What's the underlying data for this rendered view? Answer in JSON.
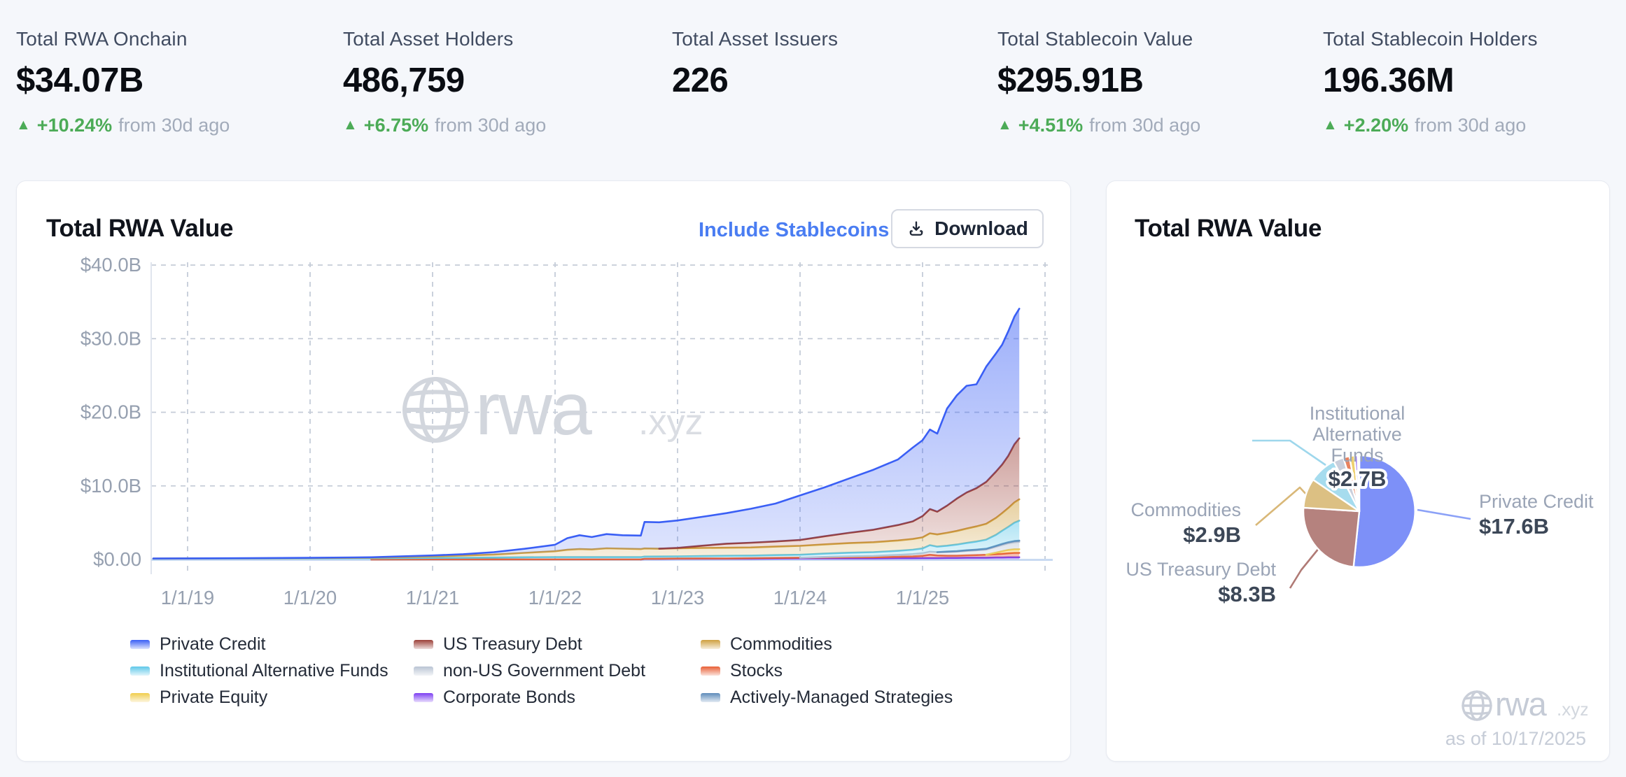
{
  "stats": [
    {
      "label": "Total RWA Onchain",
      "value": "$34.07B",
      "change": "+10.24%",
      "suffix": "from 30d ago"
    },
    {
      "label": "Total Asset Holders",
      "value": "486,759",
      "change": "+6.75%",
      "suffix": "from 30d ago"
    },
    {
      "label": "Total Asset Issuers",
      "value": "226",
      "change": null,
      "suffix": null
    },
    {
      "label": "Total Stablecoin Value",
      "value": "$295.91B",
      "change": "+4.51%",
      "suffix": "from 30d ago"
    },
    {
      "label": "Total Stablecoin Holders",
      "value": "196.36M",
      "change": "+2.20%",
      "suffix": "from 30d ago"
    }
  ],
  "left_card": {
    "title": "Total RWA Value",
    "include_stablecoins_label": "Include Stablecoins",
    "download_label": "Download"
  },
  "right_card": {
    "title": "Total RWA Value",
    "as_of": "as of 10/17/2025",
    "logo": {
      "text": "rwa",
      "suffix": ".xyz"
    }
  },
  "chart_data": [
    {
      "type": "area",
      "stacked": true,
      "title": "Total RWA Value",
      "xlabel": "",
      "ylabel": "",
      "ylim": [
        0,
        40
      ],
      "yticks": [
        0,
        10,
        20,
        30,
        40
      ],
      "ytick_labels": [
        "$0.00",
        "$10.0B",
        "$20.0B",
        "$30.0B",
        "$40.0B"
      ],
      "xticks": [
        2019,
        2020,
        2021,
        2022,
        2023,
        2024,
        2025
      ],
      "xtick_labels": [
        "1/1/19",
        "1/1/20",
        "1/1/21",
        "1/1/22",
        "1/1/23",
        "1/1/24",
        "1/1/25"
      ],
      "grid": "dashed",
      "legend_position": "bottom",
      "watermark": {
        "text": "rwa",
        "suffix": ".xyz"
      },
      "x": [
        2018.72,
        2019.0,
        2019.5,
        2020.0,
        2020.5,
        2021.0,
        2021.25,
        2021.5,
        2021.75,
        2022.0,
        2022.1,
        2022.2,
        2022.3,
        2022.42,
        2022.55,
        2022.7,
        2022.73,
        2022.85,
        2023.0,
        2023.2,
        2023.4,
        2023.6,
        2023.8,
        2024.0,
        2024.2,
        2024.4,
        2024.6,
        2024.8,
        2024.92,
        2025.0,
        2025.06,
        2025.12,
        2025.2,
        2025.28,
        2025.36,
        2025.44,
        2025.52,
        2025.6,
        2025.65,
        2025.7,
        2025.75,
        2025.79
      ],
      "series": [
        {
          "name": "Corporate Bonds",
          "color": "#7e3ff2",
          "values": [
            0,
            0,
            0,
            0,
            0,
            0,
            0,
            0,
            0,
            0,
            0,
            0,
            0,
            0,
            0,
            0,
            0.08,
            0.08,
            0.1,
            0.1,
            0.1,
            0.1,
            0.12,
            0.15,
            0.15,
            0.15,
            0.15,
            0.18,
            0.18,
            0.2,
            0.2,
            0.2,
            0.22,
            0.22,
            0.25,
            0.25,
            0.25,
            0.28,
            0.28,
            0.3,
            0.3,
            0.3
          ]
        },
        {
          "name": "Stocks",
          "color": "#e85f36",
          "values": [
            0,
            0,
            0,
            0,
            0,
            0.02,
            0.02,
            0.02,
            0.02,
            0.02,
            0.02,
            0.02,
            0.02,
            0.02,
            0.02,
            0.02,
            0.02,
            0.03,
            0.03,
            0.05,
            0.05,
            0.08,
            0.1,
            0.1,
            0.12,
            0.15,
            0.15,
            0.2,
            0.25,
            0.3,
            0.45,
            0.35,
            0.3,
            0.3,
            0.32,
            0.35,
            0.4,
            0.45,
            0.5,
            0.55,
            0.6,
            0.6
          ]
        },
        {
          "name": "Private Equity",
          "color": "#f0cd4d",
          "values": [
            0,
            0,
            0,
            0,
            0,
            0,
            0,
            0,
            0,
            0,
            0,
            0,
            0,
            0,
            0,
            0,
            0,
            0,
            0,
            0,
            0,
            0,
            0,
            0,
            0,
            0,
            0,
            0,
            0,
            0,
            0,
            0,
            0,
            0,
            0,
            0,
            0,
            0.2,
            0.35,
            0.45,
            0.5,
            0.5
          ]
        },
        {
          "name": "non-US Government Debt",
          "color": "#b9c4d4",
          "values": [
            0,
            0,
            0,
            0,
            0,
            0,
            0,
            0,
            0,
            0,
            0,
            0,
            0,
            0,
            0,
            0,
            0,
            0,
            0,
            0,
            0,
            0,
            0,
            0,
            0.08,
            0.12,
            0.18,
            0.25,
            0.3,
            0.35,
            0.4,
            0.45,
            0.5,
            0.55,
            0.6,
            0.65,
            0.7,
            0.8,
            0.85,
            0.9,
            0.95,
            1.0
          ]
        },
        {
          "name": "Actively-Managed Strategies",
          "color": "#5f8cba",
          "values": [
            0,
            0,
            0,
            0,
            0,
            0,
            0,
            0,
            0,
            0,
            0,
            0,
            0,
            0,
            0,
            0,
            0,
            0,
            0,
            0,
            0,
            0,
            0,
            0,
            0,
            0,
            0,
            0,
            0,
            0,
            0,
            0,
            0.05,
            0.06,
            0.08,
            0.09,
            0.1,
            0.12,
            0.13,
            0.14,
            0.16,
            0.17
          ]
        },
        {
          "name": "Institutional Alternative Funds",
          "color": "#5fc8e9",
          "values": [
            0.1,
            0.12,
            0.13,
            0.15,
            0.17,
            0.2,
            0.22,
            0.25,
            0.28,
            0.3,
            0.3,
            0.3,
            0.3,
            0.3,
            0.3,
            0.3,
            0.3,
            0.3,
            0.3,
            0.32,
            0.35,
            0.35,
            0.38,
            0.4,
            0.45,
            0.5,
            0.52,
            0.55,
            0.6,
            0.65,
            0.9,
            0.75,
            0.8,
            0.9,
            1.0,
            1.1,
            1.25,
            1.5,
            1.8,
            2.1,
            2.5,
            2.7
          ]
        },
        {
          "name": "Commodities",
          "color": "#cfa040",
          "values": [
            0.02,
            0.02,
            0.03,
            0.05,
            0.08,
            0.2,
            0.3,
            0.4,
            0.6,
            0.8,
            1.0,
            1.1,
            1.05,
            1.2,
            1.15,
            1.1,
            1.1,
            1.05,
            1.1,
            1.1,
            1.1,
            1.1,
            1.15,
            1.2,
            1.25,
            1.3,
            1.35,
            1.4,
            1.45,
            1.5,
            1.6,
            1.65,
            1.75,
            1.85,
            1.95,
            2.05,
            2.15,
            2.3,
            2.4,
            2.55,
            2.75,
            2.9
          ]
        },
        {
          "name": "US Treasury Debt",
          "color": "#9c4038",
          "values": [
            0,
            0,
            0,
            0,
            0,
            0,
            0,
            0,
            0,
            0,
            0,
            0,
            0,
            0,
            0,
            0,
            0,
            0,
            0.05,
            0.3,
            0.55,
            0.65,
            0.7,
            0.8,
            1.1,
            1.4,
            1.7,
            2.1,
            2.4,
            2.9,
            3.3,
            3.1,
            3.7,
            4.4,
            4.9,
            5.2,
            5.7,
            6.3,
            6.6,
            7.1,
            7.9,
            8.3
          ]
        },
        {
          "name": "Private Credit",
          "color": "#3a5ff5",
          "values": [
            0.01,
            0.01,
            0.02,
            0.03,
            0.05,
            0.13,
            0.18,
            0.33,
            0.55,
            0.88,
            1.58,
            1.88,
            1.68,
            1.93,
            1.83,
            1.83,
            3.6,
            3.59,
            3.72,
            3.93,
            4.15,
            4.62,
            5.15,
            6.05,
            6.65,
            7.38,
            8.15,
            8.92,
            10.02,
            10.3,
            10.8,
            10.6,
            13.18,
            14.02,
            14.5,
            14.11,
            15.65,
            16.05,
            16.29,
            16.91,
            17.34,
            17.6
          ]
        }
      ],
      "legend": [
        "Private Credit",
        "US Treasury Debt",
        "Commodities",
        "Institutional Alternative Funds",
        "non-US Government Debt",
        "Stocks",
        "Private Equity",
        "Corporate Bonds",
        "Actively-Managed Strategies"
      ]
    },
    {
      "type": "pie",
      "title": "Total RWA Value",
      "total": 34.07,
      "slices": [
        {
          "name": "Private Credit",
          "value": 17.6,
          "label": "$17.6B",
          "color": "#7d90f8"
        },
        {
          "name": "US Treasury Debt",
          "value": 8.3,
          "label": "$8.3B",
          "color": "#b5827e"
        },
        {
          "name": "Commodities",
          "value": 2.9,
          "label": "$2.9B",
          "color": "#dcc083"
        },
        {
          "name": "Institutional Alternative Funds",
          "value": 2.7,
          "label": "$2.7B",
          "color": "#a6dcee"
        },
        {
          "name": "non-US Government Debt",
          "value": 1.0,
          "color": "#c9cfdc"
        },
        {
          "name": "Stocks",
          "value": 0.6,
          "color": "#e8825f"
        },
        {
          "name": "Private Equity",
          "value": 0.5,
          "color": "#eed06e"
        },
        {
          "name": "Corporate Bonds",
          "value": 0.3,
          "color": "#9d74f2"
        },
        {
          "name": "Actively-Managed Strategies",
          "value": 0.17,
          "color": "#93b8da"
        }
      ]
    }
  ]
}
